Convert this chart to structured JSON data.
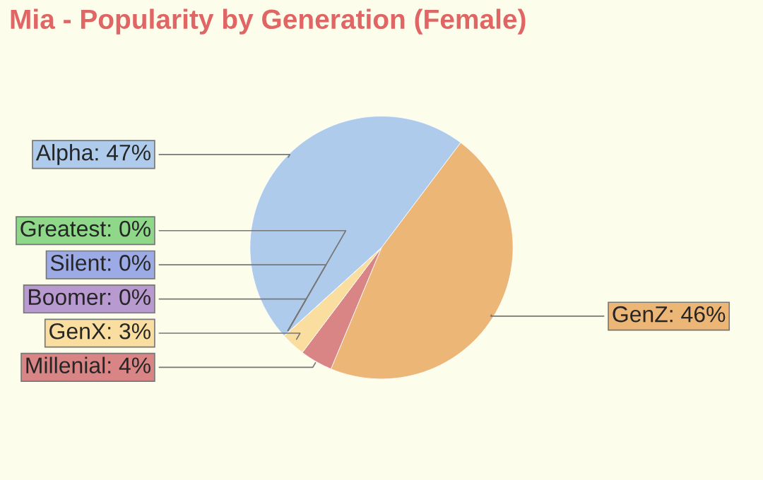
{
  "chart_data": {
    "type": "pie",
    "title": "Mia - Popularity by Generation (Female)",
    "categories": [
      "GenZ",
      "Millenial",
      "GenX",
      "Boomer",
      "Silent",
      "Greatest",
      "Alpha"
    ],
    "values": [
      46,
      4,
      3,
      0,
      0,
      0,
      47
    ],
    "value_labels": [
      ": 46%",
      ": 4%",
      ": 3%",
      ": 0%",
      ": 0%",
      ": 0%",
      ": 47%"
    ],
    "colors": [
      "#ecb677",
      "#d98585",
      "#f9dea0",
      "#b99ad0",
      "#9cabe6",
      "#8fd88a",
      "#aecbeb"
    ]
  }
}
